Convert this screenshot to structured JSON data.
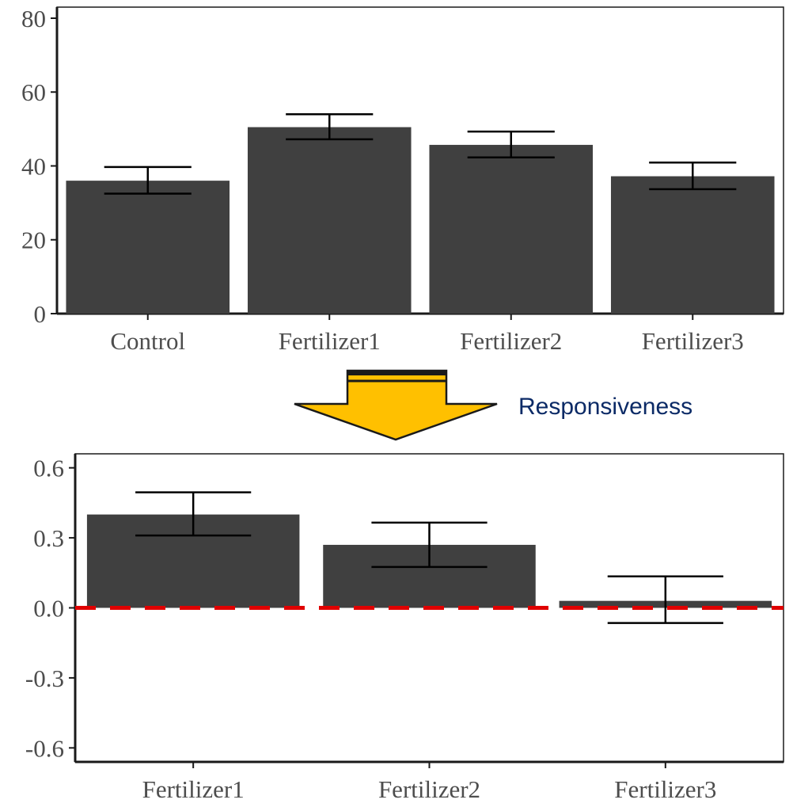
{
  "chart_data": [
    {
      "type": "bar",
      "categories": [
        "Control",
        "Fertilizer1",
        "Fertilizer2",
        "Fertilizer3"
      ],
      "values": [
        36,
        50.5,
        45.7,
        37.2
      ],
      "error_low": [
        32.5,
        47.2,
        42.3,
        33.7
      ],
      "error_high": [
        39.7,
        54.0,
        49.3,
        40.9
      ],
      "yticks": [
        "0",
        "20",
        "40",
        "60",
        "80"
      ],
      "ylim": [
        0,
        83
      ],
      "bar_color": "#404040",
      "grid": false
    },
    {
      "type": "bar",
      "categories": [
        "Fertilizer1",
        "Fertilizer2",
        "Fertilizer3"
      ],
      "values": [
        0.4,
        0.27,
        0.03
      ],
      "error_low": [
        0.31,
        0.175,
        -0.065
      ],
      "error_high": [
        0.495,
        0.365,
        0.135
      ],
      "yticks": [
        "0.6",
        "0.3",
        "0.0",
        "-0.3",
        "-0.6"
      ],
      "ylim": [
        -0.66,
        0.66
      ],
      "reference_line": {
        "y": 0,
        "color": "#e00000",
        "style": "dashed"
      },
      "bar_color": "#404040",
      "grid": false
    }
  ],
  "arrow": {
    "label": "Responsiveness",
    "fill": "#ffc000",
    "label_color": "#0b2a66"
  }
}
